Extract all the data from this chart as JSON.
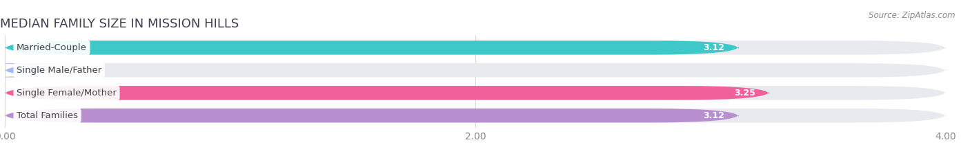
{
  "title": "MEDIAN FAMILY SIZE IN MISSION HILLS",
  "source": "Source: ZipAtlas.com",
  "categories": [
    "Married-Couple",
    "Single Male/Father",
    "Single Female/Mother",
    "Total Families"
  ],
  "values": [
    3.12,
    0.0,
    3.25,
    3.12
  ],
  "bar_colors": [
    "#3ec8c8",
    "#a8b8f0",
    "#f0609a",
    "#b890d0"
  ],
  "xlim": [
    0,
    4.0
  ],
  "xticks": [
    0.0,
    2.0,
    4.0
  ],
  "xtick_labels": [
    "0.00",
    "2.00",
    "4.00"
  ],
  "bar_height": 0.62,
  "pill_bg_color": "#e8eaf0",
  "value_label_color": "#ffffff",
  "category_label_color": "#444444",
  "category_label_bg": "#ffffff",
  "title_fontsize": 13,
  "tick_fontsize": 10,
  "bar_value_fontsize": 9,
  "category_fontsize": 9.5,
  "background_color": "#ffffff",
  "grid_color": "#d8d8e0",
  "source_color": "#888888"
}
